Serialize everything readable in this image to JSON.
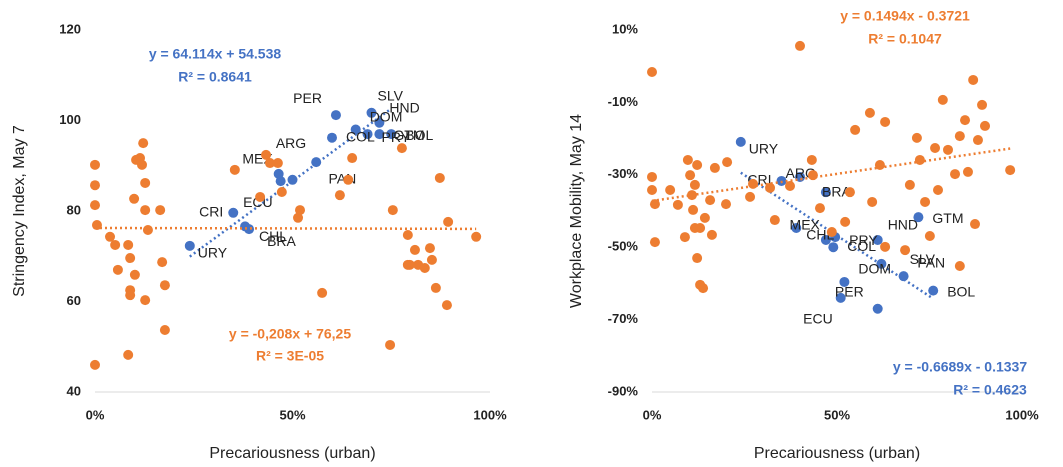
{
  "chart_data": [
    {
      "type": "scatter",
      "x_label": "Precariousness (urban)",
      "y_label": "Stringency Index, May 7",
      "xlim": [
        0,
        1
      ],
      "xticks": [
        {
          "value": 0,
          "label": "0%"
        },
        {
          "value": 0.5,
          "label": "50%"
        },
        {
          "value": 1,
          "label": "100%"
        }
      ],
      "ylim": [
        40,
        120
      ],
      "yticks": [
        40,
        60,
        80,
        100,
        120
      ],
      "series": [
        {
          "color": "#4472c4",
          "labels": [
            "URY",
            "CHL",
            "BRA",
            "CRI",
            "MEX",
            "ECU",
            "PAN",
            "ARG",
            "COL",
            "DOM",
            "PRY",
            "PER",
            "SLV",
            "HND",
            "BOL",
            "GTM"
          ],
          "x": [
            0.24,
            0.39,
            0.38,
            0.35,
            0.465,
            0.47,
            0.5,
            0.56,
            0.6,
            0.66,
            0.69,
            0.61,
            0.7,
            0.72,
            0.75,
            0.72
          ],
          "values": [
            72.3,
            76.0,
            76.6,
            79.6,
            88.2,
            86.6,
            86.9,
            90.8,
            96.2,
            98.0,
            97.0,
            101.2,
            101.7,
            99.5,
            97.0,
            97.0
          ],
          "trendline": {
            "equation": "y = 64.114x + 54.538",
            "r_squared": "R² = 0.8641",
            "slope": 64.114,
            "intercept": 54.538
          }
        },
        {
          "color": "#ed7d31",
          "x": [
            0,
            0,
            0,
            0.005,
            0,
            0.038,
            0.051,
            0.058,
            0.084,
            0.089,
            0.089,
            0.089,
            0.101,
            0.099,
            0.104,
            0.114,
            0.119,
            0.122,
            0.127,
            0.127,
            0.127,
            0.134,
            0.165,
            0.17,
            0.177,
            0.177,
            0.084,
            0.354,
            0.418,
            0.433,
            0.443,
            0.463,
            0.473,
            0.514,
            0.519,
            0.575,
            0.62,
            0.641,
            0.651,
            0.747,
            0.754,
            0.777,
            0.792,
            0.792,
            0.797,
            0.81,
            0.818,
            0.835,
            0.848,
            0.853,
            0.863,
            0.873,
            0.891,
            0.894,
            0.965
          ],
          "values": [
            90.2,
            85.7,
            81.3,
            76.9,
            46.0,
            74.3,
            72.5,
            67.0,
            72.5,
            69.6,
            62.5,
            61.4,
            65.9,
            82.7,
            91.3,
            91.7,
            90.2,
            95.0,
            86.2,
            80.2,
            60.3,
            75.8,
            80.2,
            68.7,
            63.6,
            53.7,
            48.2,
            89.1,
            83.1,
            92.4,
            90.6,
            90.6,
            84.2,
            78.5,
            80.2,
            61.9,
            83.5,
            86.9,
            91.7,
            50.4,
            80.2,
            93.9,
            74.7,
            68.1,
            68.1,
            71.4,
            68.1,
            67.4,
            71.8,
            69.2,
            63.0,
            87.3,
            59.2,
            77.6,
            74.3
          ],
          "trendline": {
            "equation": "y = -0,208x + 76,25",
            "r_squared": "R² = 3E-05",
            "slope": -0.208,
            "intercept": 76.25
          }
        }
      ]
    },
    {
      "type": "scatter",
      "x_label": "Precariousness (urban)",
      "y_label": "Workplace Mobility, May 14",
      "xlim": [
        0,
        1
      ],
      "xticks": [
        {
          "value": 0,
          "label": "0%"
        },
        {
          "value": 0.5,
          "label": "50%"
        },
        {
          "value": 1,
          "label": "100%"
        }
      ],
      "ylim": [
        -0.9,
        0.1
      ],
      "yticks": [
        {
          "value": -0.9,
          "label": "-90%"
        },
        {
          "value": -0.7,
          "label": "-70%"
        },
        {
          "value": -0.5,
          "label": "-50%"
        },
        {
          "value": -0.3,
          "label": "-30%"
        },
        {
          "value": -0.1,
          "label": "-10%"
        },
        {
          "value": 0.1,
          "label": "10%"
        }
      ],
      "series": [
        {
          "color": "#4472c4",
          "labels": [
            "URY",
            "CHL",
            "BRA",
            "CRI",
            "MEX",
            "ECU",
            "PAN",
            "ARG",
            "COL",
            "DOM",
            "PRY",
            "PER",
            "SLV",
            "HND",
            "BOL",
            "GTM"
          ],
          "x": [
            0.24,
            0.39,
            0.4,
            0.35,
            0.47,
            0.51,
            0.62,
            0.47,
            0.49,
            0.52,
            0.495,
            0.61,
            0.68,
            0.61,
            0.76,
            0.72
          ],
          "values": [
            -0.209,
            -0.447,
            -0.306,
            -0.317,
            -0.48,
            -0.64,
            -0.546,
            -0.348,
            -0.5,
            -0.596,
            -0.472,
            -0.67,
            -0.58,
            -0.48,
            -0.62,
            -0.417
          ],
          "trendline": {
            "equation": "y = -0.6689x - 0.1337",
            "r_squared": "R² = 0.4623",
            "slope": -0.6689,
            "intercept": -0.1337
          }
        },
        {
          "color": "#ed7d31",
          "x": [
            0,
            0,
            0,
            0.008,
            0.008,
            0.049,
            0.07,
            0.089,
            0.097,
            0.103,
            0.108,
            0.111,
            0.116,
            0.116,
            0.122,
            0.122,
            0.13,
            0.13,
            0.138,
            0.143,
            0.157,
            0.162,
            0.17,
            0.2,
            0.203,
            0.273,
            0.265,
            0.319,
            0.332,
            0.373,
            0.4,
            0.432,
            0.435,
            0.454,
            0.486,
            0.522,
            0.535,
            0.549,
            0.589,
            0.595,
            0.616,
            0.63,
            0.63,
            0.684,
            0.697,
            0.716,
            0.724,
            0.738,
            0.751,
            0.765,
            0.773,
            0.786,
            0.8,
            0.819,
            0.832,
            0.832,
            0.846,
            0.854,
            0.868,
            0.873,
            0.881,
            0.892,
            0.9,
            0.968
          ],
          "values": [
            -0.016,
            -0.306,
            -0.342,
            -0.381,
            -0.486,
            -0.342,
            -0.383,
            -0.472,
            -0.259,
            -0.301,
            -0.356,
            -0.397,
            -0.447,
            -0.328,
            -0.273,
            -0.53,
            -0.447,
            -0.604,
            -0.613,
            -0.419,
            -0.37,
            -0.466,
            -0.281,
            -0.381,
            -0.265,
            -0.325,
            -0.361,
            -0.336,
            -0.425,
            -0.331,
            0.056,
            -0.259,
            -0.301,
            -0.392,
            -0.458,
            -0.43,
            -0.348,
            -0.176,
            -0.129,
            -0.375,
            -0.273,
            -0.154,
            -0.499,
            -0.508,
            -0.328,
            -0.198,
            -0.259,
            -0.375,
            -0.469,
            -0.226,
            -0.342,
            -0.093,
            -0.231,
            -0.298,
            -0.193,
            -0.552,
            -0.149,
            -0.292,
            -0.038,
            -0.436,
            -0.204,
            -0.107,
            -0.165,
            -0.287
          ],
          "trendline": {
            "equation": "y = 0.1494x - 0.3721",
            "r_squared": "R² = 0.1047",
            "slope": 0.1494,
            "intercept": -0.3721
          }
        }
      ]
    }
  ]
}
